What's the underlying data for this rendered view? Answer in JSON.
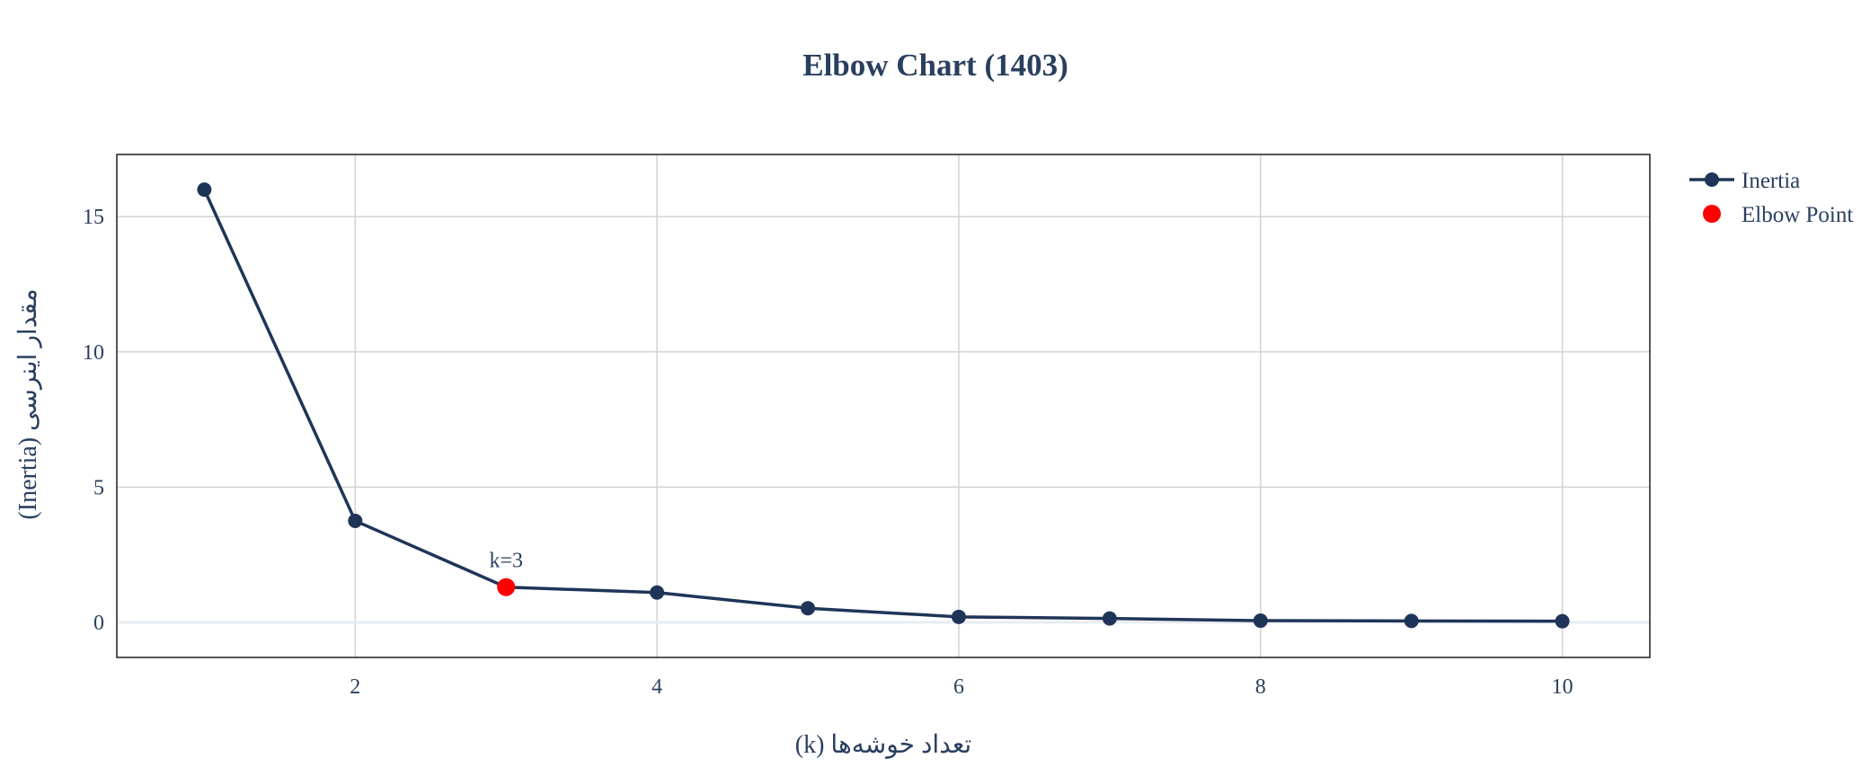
{
  "chart_data": {
    "type": "line",
    "title": "Elbow Chart (1403)",
    "xlabel": "تعداد خوشه‌ها (k)",
    "ylabel": "مقدار اینرسی (Inertia)",
    "xlim": [
      0.42,
      10.58
    ],
    "ylim": [
      -1.3,
      17.3
    ],
    "xticks": [
      2,
      4,
      6,
      8,
      10
    ],
    "yticks": [
      0,
      5,
      10,
      15
    ],
    "grid": true,
    "legend_position": "top-right, outside plot",
    "series": [
      {
        "name": "Inertia",
        "mode": "lines+markers",
        "color": "#1f3558",
        "x": [
          1,
          2,
          3,
          4,
          5,
          6,
          7,
          8,
          9,
          10
        ],
        "y": [
          16.0,
          3.75,
          1.3,
          1.1,
          0.52,
          0.2,
          0.14,
          0.06,
          0.05,
          0.04
        ]
      },
      {
        "name": "Elbow Point",
        "mode": "markers",
        "color": "#ff0000",
        "x": [
          3
        ],
        "y": [
          1.3
        ]
      }
    ],
    "annotations": [
      {
        "text": "k=3",
        "x": 3,
        "y": 1.3
      }
    ]
  }
}
